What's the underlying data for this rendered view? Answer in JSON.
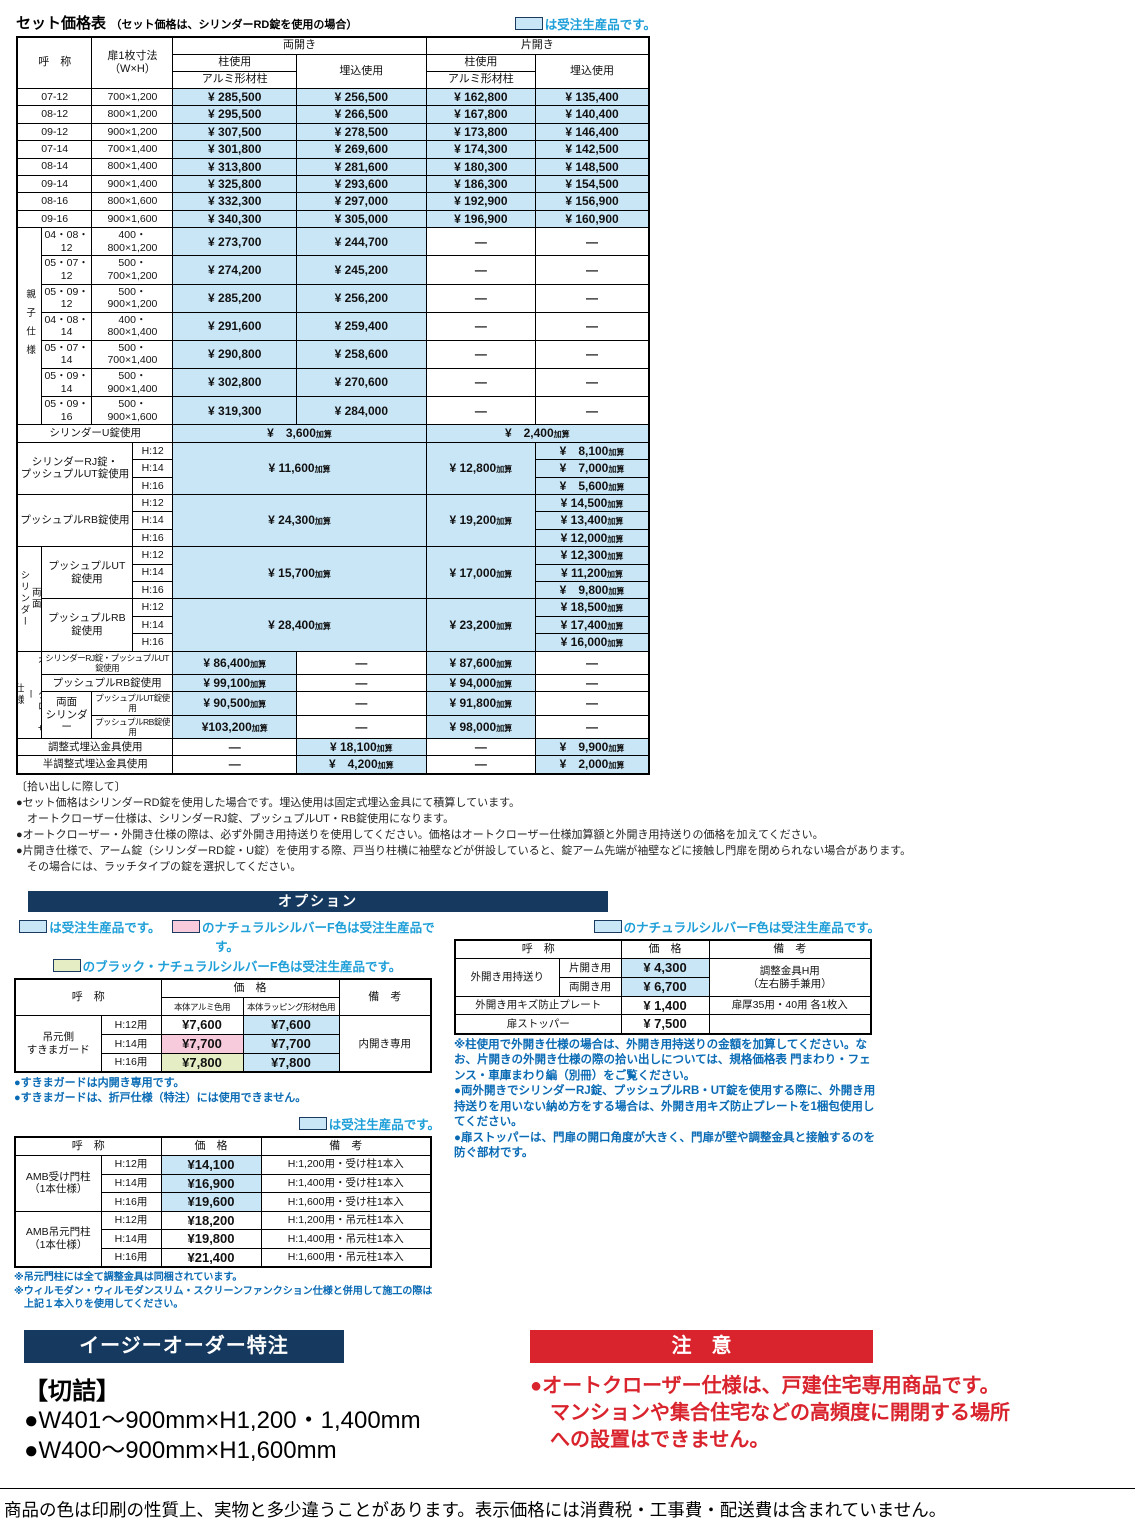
{
  "colors": {
    "made_to_order_blue_bg": "#c9e6f7",
    "natural_silver_pink_bg": "#f8cbdc",
    "black_natural_silver_cream_bg": "#e4edc3",
    "navy_bar": "#16395f",
    "caution_red": "#d9232d",
    "legend_text_blue": "#1e9fd8",
    "option_note_blue": "#0a6bb5"
  },
  "header": {
    "title": "セット価格表",
    "subtitle": "（セット価格は、シリンダーRD錠を使用の場合）",
    "legend": "は受注生産品です。"
  },
  "main_table": {
    "cols": [
      24,
      50,
      40,
      40,
      122,
      128,
      108,
      112
    ],
    "rows": [
      [
        {
          "t": "呼　称",
          "cs": 2,
          "rs": 3,
          "c": "hd"
        },
        {
          "t": "扉1枚寸法\n（W×H）",
          "cs": 2,
          "rs": 3,
          "c": "hd"
        },
        {
          "t": "両開き",
          "cs": 2,
          "c": "hd"
        },
        {
          "t": "片開き",
          "cs": 2,
          "c": "hd"
        }
      ],
      [
        {
          "t": "柱使用",
          "c": "hd"
        },
        {
          "t": "埋込使用",
          "rs": 2,
          "c": "hd"
        },
        {
          "t": "柱使用",
          "c": "hd"
        },
        {
          "t": "埋込使用",
          "rs": 2,
          "c": "hd"
        }
      ],
      [
        {
          "t": "アルミ形材柱",
          "c": "hd"
        },
        {
          "t": "アルミ形材柱",
          "c": "hd"
        }
      ],
      [
        {
          "t": "07-12",
          "cs": 2
        },
        {
          "t": "700×1,200",
          "cs": 2
        },
        {
          "t": "¥ 285,500",
          "c": "p b"
        },
        {
          "t": "¥ 256,500",
          "c": "p b"
        },
        {
          "t": "¥ 162,800",
          "c": "p b"
        },
        {
          "t": "¥ 135,400",
          "c": "p b"
        }
      ],
      [
        {
          "t": "08-12",
          "cs": 2
        },
        {
          "t": "800×1,200",
          "cs": 2
        },
        {
          "t": "¥ 295,500",
          "c": "p b"
        },
        {
          "t": "¥ 266,500",
          "c": "p b"
        },
        {
          "t": "¥ 167,800",
          "c": "p b"
        },
        {
          "t": "¥ 140,400",
          "c": "p b"
        }
      ],
      [
        {
          "t": "09-12",
          "cs": 2
        },
        {
          "t": "900×1,200",
          "cs": 2
        },
        {
          "t": "¥ 307,500",
          "c": "p b"
        },
        {
          "t": "¥ 278,500",
          "c": "p b"
        },
        {
          "t": "¥ 173,800",
          "c": "p b"
        },
        {
          "t": "¥ 146,400",
          "c": "p b"
        }
      ],
      [
        {
          "t": "07-14",
          "cs": 2
        },
        {
          "t": "700×1,400",
          "cs": 2
        },
        {
          "t": "¥ 301,800",
          "c": "p b"
        },
        {
          "t": "¥ 269,600",
          "c": "p b"
        },
        {
          "t": "¥ 174,300",
          "c": "p b"
        },
        {
          "t": "¥ 142,500",
          "c": "p b"
        }
      ],
      [
        {
          "t": "08-14",
          "cs": 2
        },
        {
          "t": "800×1,400",
          "cs": 2
        },
        {
          "t": "¥ 313,800",
          "c": "p b"
        },
        {
          "t": "¥ 281,600",
          "c": "p b"
        },
        {
          "t": "¥ 180,300",
          "c": "p b"
        },
        {
          "t": "¥ 148,500",
          "c": "p b"
        }
      ],
      [
        {
          "t": "09-14",
          "cs": 2
        },
        {
          "t": "900×1,400",
          "cs": 2
        },
        {
          "t": "¥ 325,800",
          "c": "p b"
        },
        {
          "t": "¥ 293,600",
          "c": "p b"
        },
        {
          "t": "¥ 186,300",
          "c": "p b"
        },
        {
          "t": "¥ 154,500",
          "c": "p b"
        }
      ],
      [
        {
          "t": "08-16",
          "cs": 2
        },
        {
          "t": "800×1,600",
          "cs": 2
        },
        {
          "t": "¥ 332,300",
          "c": "p b"
        },
        {
          "t": "¥ 297,000",
          "c": "p b"
        },
        {
          "t": "¥ 192,900",
          "c": "p b"
        },
        {
          "t": "¥ 156,900",
          "c": "p b"
        }
      ],
      [
        {
          "t": "09-16",
          "cs": 2
        },
        {
          "t": "900×1,600",
          "cs": 2
        },
        {
          "t": "¥ 340,300",
          "c": "p b"
        },
        {
          "t": "¥ 305,000",
          "c": "p b"
        },
        {
          "t": "¥ 196,900",
          "c": "p b"
        },
        {
          "t": "¥ 160,900",
          "c": "p b"
        }
      ],
      [
        {
          "t": "親子仕様",
          "rs": 7,
          "c": "v vp"
        },
        {
          "t": "04・08・12"
        },
        {
          "t": "400・800×1,200",
          "cs": 2
        },
        {
          "t": "¥ 273,700",
          "c": "p b"
        },
        {
          "t": "¥ 244,700",
          "c": "p b"
        },
        {
          "t": "—",
          "c": "p"
        },
        {
          "t": "—",
          "c": "p"
        }
      ],
      [
        {
          "t": "05・07・12"
        },
        {
          "t": "500・700×1,200",
          "cs": 2
        },
        {
          "t": "¥ 274,200",
          "c": "p b"
        },
        {
          "t": "¥ 245,200",
          "c": "p b"
        },
        {
          "t": "—",
          "c": "p"
        },
        {
          "t": "—",
          "c": "p"
        }
      ],
      [
        {
          "t": "05・09・12"
        },
        {
          "t": "500・900×1,200",
          "cs": 2
        },
        {
          "t": "¥ 285,200",
          "c": "p b"
        },
        {
          "t": "¥ 256,200",
          "c": "p b"
        },
        {
          "t": "—",
          "c": "p"
        },
        {
          "t": "—",
          "c": "p"
        }
      ],
      [
        {
          "t": "04・08・14"
        },
        {
          "t": "400・800×1,400",
          "cs": 2
        },
        {
          "t": "¥ 291,600",
          "c": "p b"
        },
        {
          "t": "¥ 259,400",
          "c": "p b"
        },
        {
          "t": "—",
          "c": "p"
        },
        {
          "t": "—",
          "c": "p"
        }
      ],
      [
        {
          "t": "05・07・14"
        },
        {
          "t": "500・700×1,400",
          "cs": 2
        },
        {
          "t": "¥ 290,800",
          "c": "p b"
        },
        {
          "t": "¥ 258,600",
          "c": "p b"
        },
        {
          "t": "—",
          "c": "p"
        },
        {
          "t": "—",
          "c": "p"
        }
      ],
      [
        {
          "t": "05・09・14"
        },
        {
          "t": "500・900×1,400",
          "cs": 2
        },
        {
          "t": "¥ 302,800",
          "c": "p b"
        },
        {
          "t": "¥ 270,600",
          "c": "p b"
        },
        {
          "t": "—",
          "c": "p"
        },
        {
          "t": "—",
          "c": "p"
        }
      ],
      [
        {
          "t": "05・09・16"
        },
        {
          "t": "500・900×1,600",
          "cs": 2
        },
        {
          "t": "¥ 319,300",
          "c": "p b"
        },
        {
          "t": "¥ 284,000",
          "c": "p b"
        },
        {
          "t": "—",
          "c": "p"
        },
        {
          "t": "—",
          "c": "p"
        }
      ],
      [
        {
          "t": "シリンダーU錠使用",
          "cs": 4
        },
        {
          "t": "¥　3,600加算",
          "cs": 2,
          "c": "p b"
        },
        {
          "t": "¥　2,400加算",
          "cs": 2,
          "c": "p b"
        }
      ],
      [
        {
          "t": "シリンダーRJ錠・\nプッシュプルUT錠使用",
          "cs": 3,
          "rs": 3
        },
        {
          "t": "H:12"
        },
        {
          "t": "¥ 11,600加算",
          "cs": 2,
          "rs": 3,
          "c": "p b"
        },
        {
          "t": "¥ 12,800加算",
          "rs": 3,
          "c": "p b"
        },
        {
          "t": "¥　8,100加算",
          "c": "p b"
        }
      ],
      [
        {
          "t": "H:14"
        },
        {
          "t": "¥　7,000加算",
          "c": "p b"
        }
      ],
      [
        {
          "t": "H:16"
        },
        {
          "t": "¥　5,600加算",
          "c": "p b"
        }
      ],
      [
        {
          "t": "プッシュプルRB錠使用",
          "cs": 3,
          "rs": 3
        },
        {
          "t": "H:12"
        },
        {
          "t": "¥ 24,300加算",
          "cs": 2,
          "rs": 3,
          "c": "p b"
        },
        {
          "t": "¥ 19,200加算",
          "rs": 3,
          "c": "p b"
        },
        {
          "t": "¥ 14,500加算",
          "c": "p b"
        }
      ],
      [
        {
          "t": "H:14"
        },
        {
          "t": "¥ 13,400加算",
          "c": "p b"
        }
      ],
      [
        {
          "t": "H:16"
        },
        {
          "t": "¥ 12,000加算",
          "c": "p b"
        }
      ],
      [
        {
          "t": "両面\nシリンダー",
          "rs": 6,
          "c": "v"
        },
        {
          "t": "プッシュプルUT錠使用",
          "cs": 2,
          "rs": 3
        },
        {
          "t": "H:12"
        },
        {
          "t": "¥ 15,700加算",
          "cs": 2,
          "rs": 3,
          "c": "p b"
        },
        {
          "t": "¥ 17,000加算",
          "rs": 3,
          "c": "p b"
        },
        {
          "t": "¥ 12,300加算",
          "c": "p b"
        }
      ],
      [
        {
          "t": "H:14"
        },
        {
          "t": "¥ 11,200加算",
          "c": "p b"
        }
      ],
      [
        {
          "t": "H:16"
        },
        {
          "t": "¥　9,800加算",
          "c": "p b"
        }
      ],
      [
        {
          "t": "プッシュプルRB錠使用",
          "cs": 2,
          "rs": 3
        },
        {
          "t": "H:12"
        },
        {
          "t": "¥ 28,400加算",
          "cs": 2,
          "rs": 3,
          "c": "p b"
        },
        {
          "t": "¥ 23,200加算",
          "rs": 3,
          "c": "p b"
        },
        {
          "t": "¥ 18,500加算",
          "c": "p b"
        }
      ],
      [
        {
          "t": "H:14"
        },
        {
          "t": "¥ 17,400加算",
          "c": "p b"
        }
      ],
      [
        {
          "t": "H:16"
        },
        {
          "t": "¥ 16,000加算",
          "c": "p b"
        }
      ],
      [
        {
          "t": "オートクローザー\n仕様",
          "rs": 4,
          "c": "v"
        },
        {
          "t": "シリンダーRJ錠・プッシュプルUT錠使用",
          "cs": 3,
          "c": "sm"
        },
        {
          "t": "¥ 86,400加算",
          "c": "p b"
        },
        {
          "t": "—",
          "c": "p"
        },
        {
          "t": "¥ 87,600加算",
          "c": "p b"
        },
        {
          "t": "—",
          "c": "p"
        }
      ],
      [
        {
          "t": "プッシュプルRB錠使用",
          "cs": 3
        },
        {
          "t": "¥ 99,100加算",
          "c": "p b"
        },
        {
          "t": "—",
          "c": "p"
        },
        {
          "t": "¥ 94,000加算",
          "c": "p b"
        },
        {
          "t": "—",
          "c": "p"
        }
      ],
      [
        {
          "t": "両面\nシリンダー",
          "rs": 2
        },
        {
          "t": "プッシュプルUT錠使用",
          "cs": 2,
          "c": "sm"
        },
        {
          "t": "¥ 90,500加算",
          "c": "p b"
        },
        {
          "t": "—",
          "c": "p"
        },
        {
          "t": "¥ 91,800加算",
          "c": "p b"
        },
        {
          "t": "—",
          "c": "p"
        }
      ],
      [
        {
          "t": "プッシュプルRB錠使用",
          "cs": 2,
          "c": "sm"
        },
        {
          "t": "¥103,200加算",
          "c": "p b"
        },
        {
          "t": "—",
          "c": "p"
        },
        {
          "t": "¥ 98,000加算",
          "c": "p b"
        },
        {
          "t": "—",
          "c": "p"
        }
      ],
      [
        {
          "t": "調整式埋込金具使用",
          "cs": 4
        },
        {
          "t": "—",
          "c": "p"
        },
        {
          "t": "¥ 18,100加算",
          "c": "p b"
        },
        {
          "t": "—",
          "c": "p"
        },
        {
          "t": "¥　9,900加算",
          "c": "p b"
        }
      ],
      [
        {
          "t": "半調整式埋込金具使用",
          "cs": 4
        },
        {
          "t": "—",
          "c": "p"
        },
        {
          "t": "¥　4,200加算",
          "c": "p b"
        },
        {
          "t": "—",
          "c": "p"
        },
        {
          "t": "¥　2,000加算",
          "c": "p b"
        }
      ]
    ]
  },
  "notes_main": {
    "heading": "〔拾い出しに際して〕",
    "items": [
      "●セット価格はシリンダーRD錠を使用した場合です。埋込使用は固定式埋込金具にて積算しています。\n　オートクローザー仕様は、シリンダーRJ錠、プッシュプルUT・RB錠使用になります。",
      "●オートクローザー・外開き仕様の際は、必ず外開き用持送りを使用してください。価格はオートクローザー仕様加算額と外開き用持送りの価格を加えてください。",
      "●片開き仕様で、アーム錠（シリンダーRD錠・U錠）を使用する際、戸当り柱横に袖壁などが併設していると、錠アーム先端が袖壁などに接触し門扉を閉められない場合があります。\n　その場合には、ラッチタイプの錠を選択してください。"
    ]
  },
  "options": {
    "bar_label": "オプション",
    "left": {
      "legend1a": "は受注生産品です。",
      "legend1b": "のナチュラルシルバーF色は受注生産品です。",
      "legend2": "のブラック・ナチュラルシルバーF色は受注生産品です。",
      "sukima_table": {
        "cols": [
          86,
          60,
          82,
          96,
          92
        ],
        "rows": [
          [
            {
              "t": "呼　称",
              "cs": 2,
              "rs": 2,
              "c": "hd"
            },
            {
              "t": "価　格",
              "cs": 2,
              "c": "hd"
            },
            {
              "t": "備　考",
              "rs": 2,
              "c": "hd"
            }
          ],
          [
            {
              "t": "本体アルミ色用",
              "c": "hd sm"
            },
            {
              "t": "本体ラッピング形材色用",
              "c": "hd sm"
            }
          ],
          [
            {
              "t": "吊元側\nすきまガード",
              "rs": 3
            },
            {
              "t": "H:12用"
            },
            {
              "t": "¥7,600",
              "c": "p"
            },
            {
              "t": "¥7,600",
              "c": "p b"
            },
            {
              "t": "内開き専用",
              "rs": 3
            }
          ],
          [
            {
              "t": "H:14用"
            },
            {
              "t": "¥7,700",
              "c": "p pink"
            },
            {
              "t": "¥7,700",
              "c": "p b"
            }
          ],
          [
            {
              "t": "H:16用"
            },
            {
              "t": "¥7,800",
              "c": "p cream"
            },
            {
              "t": "¥7,800",
              "c": "p b"
            }
          ]
        ]
      },
      "sukima_notes": [
        "●すきまガードは内開き専用です。",
        "●すきまガードは、折戸仕様（特注）には使用できません。"
      ],
      "amb_legend": "は受注生産品です。",
      "amb_table": {
        "cols": [
          86,
          60,
          100,
          170
        ],
        "rows": [
          [
            {
              "t": "呼　称",
              "cs": 2,
              "c": "hd"
            },
            {
              "t": "価　格",
              "c": "hd"
            },
            {
              "t": "備　考",
              "c": "hd"
            }
          ],
          [
            {
              "t": "AMB受け門柱\n（1本仕様）",
              "rs": 3
            },
            {
              "t": "H:12用"
            },
            {
              "t": "¥14,100",
              "c": "p b"
            },
            {
              "t": "H:1,200用・受け柱1本入"
            }
          ],
          [
            {
              "t": "H:14用"
            },
            {
              "t": "¥16,900",
              "c": "p b"
            },
            {
              "t": "H:1,400用・受け柱1本入"
            }
          ],
          [
            {
              "t": "H:16用"
            },
            {
              "t": "¥19,600",
              "c": "p b"
            },
            {
              "t": "H:1,600用・受け柱1本入"
            }
          ],
          [
            {
              "t": "AMB吊元門柱\n（1本仕様）",
              "rs": 3
            },
            {
              "t": "H:12用"
            },
            {
              "t": "¥18,200",
              "c": "p"
            },
            {
              "t": "H:1,200用・吊元柱1本入"
            }
          ],
          [
            {
              "t": "H:14用"
            },
            {
              "t": "¥19,800",
              "c": "p"
            },
            {
              "t": "H:1,400用・吊元柱1本入"
            }
          ],
          [
            {
              "t": "H:16用"
            },
            {
              "t": "¥21,400",
              "c": "p"
            },
            {
              "t": "H:1,600用・吊元柱1本入"
            }
          ]
        ]
      },
      "amb_notes": [
        "※吊元門柱には全て調整金具は同梱されています。",
        "※ウィルモダン・ウィルモダンスリム・スクリーンファンクション仕様と併用して施工の際は\n　上記１本入りを使用してください。"
      ]
    },
    "right": {
      "legend": "のナチュラルシルバーF色は受注生産品です。",
      "mochiokuri_table": {
        "cols": [
          104,
          62,
          88,
          162
        ],
        "rows": [
          [
            {
              "t": "呼　称",
              "cs": 2,
              "c": "hd"
            },
            {
              "t": "価　格",
              "c": "hd"
            },
            {
              "t": "備　考",
              "c": "hd"
            }
          ],
          [
            {
              "t": "外開き用持送り",
              "rs": 2
            },
            {
              "t": "片開き用"
            },
            {
              "t": "¥ 4,300",
              "c": "p b"
            },
            {
              "t": "調整金具H用\n（左右勝手兼用）",
              "rs": 2
            }
          ],
          [
            {
              "t": "両開き用"
            },
            {
              "t": "¥ 6,700",
              "c": "p b"
            }
          ],
          [
            {
              "t": "外開き用キズ防止プレート",
              "cs": 2
            },
            {
              "t": "¥ 1,400",
              "c": "p"
            },
            {
              "t": "扉厚35用・40用 各1枚入"
            }
          ],
          [
            {
              "t": "扉ストッパー",
              "cs": 2
            },
            {
              "t": "¥ 7,500",
              "c": "p"
            },
            {
              "t": ""
            }
          ]
        ]
      },
      "notes": [
        "※柱使用で外開き仕様の場合は、外開き用持送りの金額を加算してください。なお、片開きの外開き仕様の際の拾い出しについては、規格価格表 門まわり・フェンス・車庫まわり編（別冊）をご覧ください。",
        "●両外開きでシリンダーRJ錠、プッシュプルRB・UT錠を使用する際に、外開き用持送りを用いない納め方をする場合は、外開き用キズ防止プレートを1梱包使用してください。",
        "●扉ストッパーは、門扉の開口角度が大きく、門扉が壁や調整金具と接触するのを防ぐ部材です。"
      ]
    }
  },
  "easy_order": {
    "bar_label": "イージーオーダー特注",
    "heading": "【切詰】",
    "items": [
      "●W401～900mm×H1,200・1,400mm",
      "●W400～900mm×H1,600mm"
    ]
  },
  "caution": {
    "bar_label": "注　意",
    "text": "●オートクローザー仕様は、戸建住宅専用商品です。\nマンションや集合住宅などの高頻度に開閉する場所\nへの設置はできません。"
  },
  "footer": "商品の色は印刷の性質上、実物と多少違うことがあります。表示価格には消費税・工事費・配送費は含まれていません。"
}
